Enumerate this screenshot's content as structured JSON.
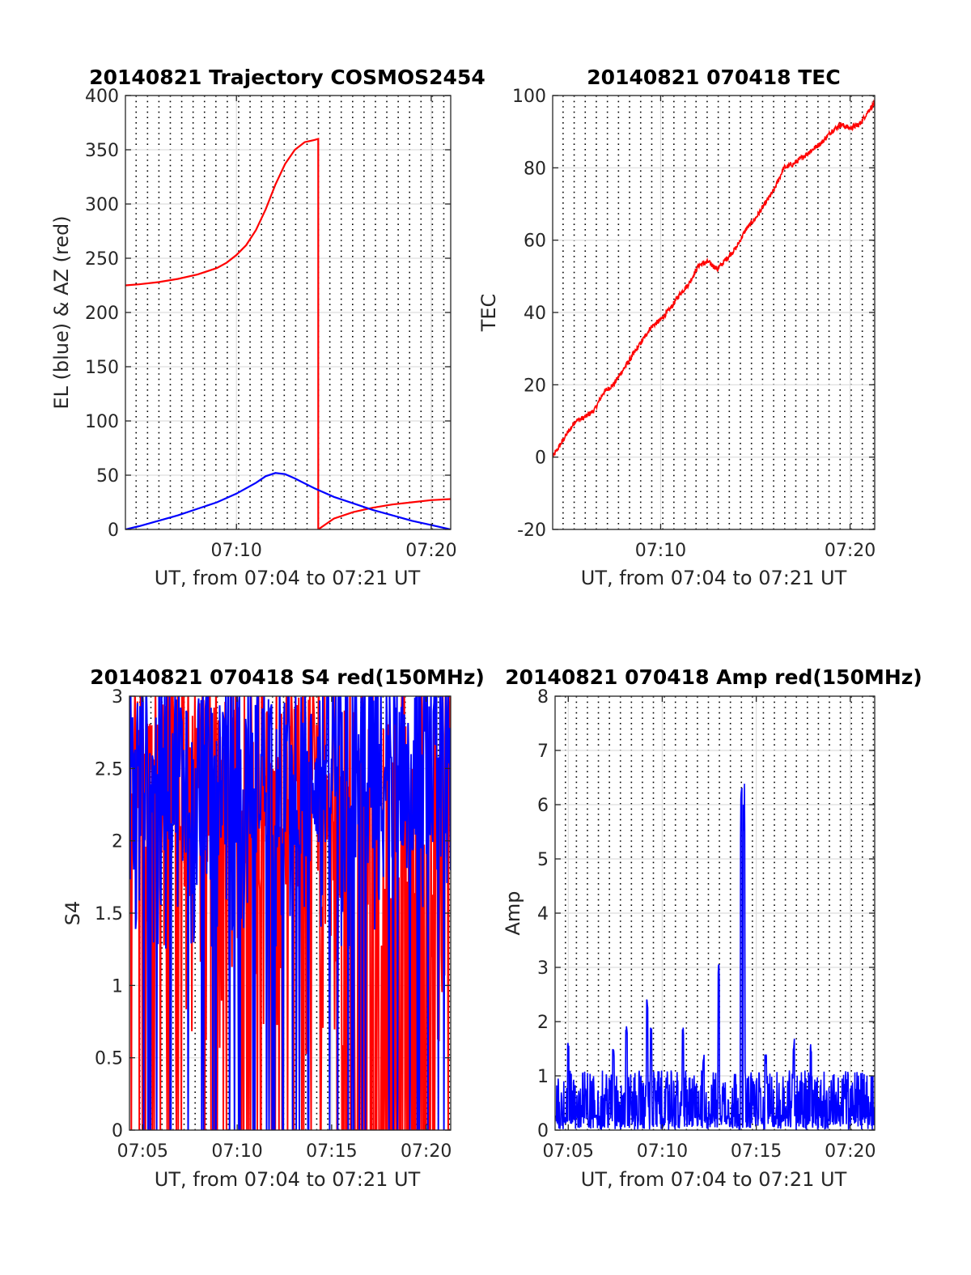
{
  "figure": {
    "background": "#ffffff"
  },
  "colors": {
    "red": "#ff0000",
    "blue": "#0000ff",
    "grid_major": "#dddddd",
    "grid_minor": "#000000",
    "axes": "#262626"
  },
  "chart_data": [
    {
      "id": "trajectory",
      "type": "line",
      "title": "20140821 Trajectory COSMOS2454",
      "xlabel": "UT, from 07:04 to 07:21 UT",
      "ylabel": "EL (blue) & AZ (red)",
      "xlim_minutes": [
        4.3,
        21.0
      ],
      "ylim": [
        0,
        400
      ],
      "yticks": [
        0,
        50,
        100,
        150,
        200,
        250,
        300,
        350,
        400
      ],
      "xticks": [
        {
          "value": 10,
          "label": "07:10"
        },
        {
          "value": 20,
          "label": "07:20"
        }
      ],
      "minor_grid": "dotted vertical every ~0.6 min",
      "series": [
        {
          "color": "red",
          "x": [
            4.3,
            5,
            6,
            7,
            8,
            9,
            9.5,
            10,
            10.5,
            11,
            11.5,
            12,
            12.5,
            13,
            13.5,
            14,
            14.2,
            14.2,
            15,
            16,
            17,
            18,
            19,
            20,
            21
          ],
          "y": [
            225,
            226,
            228,
            231,
            235,
            241,
            246,
            253,
            262,
            276,
            295,
            318,
            337,
            350,
            357,
            359,
            360,
            0,
            10,
            16,
            20,
            23,
            25,
            27,
            28
          ]
        },
        {
          "color": "blue",
          "x": [
            4.3,
            5,
            6,
            7,
            8,
            9,
            10,
            11,
            11.5,
            12,
            12.5,
            13,
            14,
            15,
            16,
            17,
            18,
            19,
            20,
            21
          ],
          "y": [
            0,
            3,
            8,
            13,
            19,
            25,
            33,
            43,
            49,
            52,
            51,
            47,
            38,
            30,
            24,
            18,
            13,
            8,
            4,
            0
          ]
        }
      ]
    },
    {
      "id": "tec",
      "type": "line",
      "title": "20140821 070418 TEC",
      "xlabel": "UT, from 07:04 to 07:21 UT",
      "ylabel": "TEC",
      "xlim_minutes": [
        4.3,
        21.3
      ],
      "ylim": [
        -20,
        100
      ],
      "yticks": [
        -20,
        0,
        20,
        40,
        60,
        80,
        100
      ],
      "xticks": [
        {
          "value": 10,
          "label": "07:10"
        },
        {
          "value": 20,
          "label": "07:20"
        }
      ],
      "series": [
        {
          "color": "red",
          "x": [
            4.3,
            5,
            5.5,
            6,
            6.5,
            7,
            7.5,
            8,
            8.5,
            9,
            9.5,
            10,
            10.5,
            11,
            11.5,
            12,
            12.5,
            13,
            13.5,
            14,
            14.5,
            15,
            15.5,
            16,
            16.5,
            17,
            17.5,
            18,
            18.5,
            19,
            19.5,
            20,
            20.5,
            21,
            21.3
          ],
          "y": [
            0,
            6,
            10,
            11,
            13,
            18,
            20,
            24,
            28,
            32,
            36,
            38,
            41,
            45,
            48,
            53,
            54,
            52,
            55,
            58,
            63,
            66,
            70,
            74,
            80,
            81,
            83,
            85,
            87,
            90,
            92,
            91,
            92,
            96,
            98
          ]
        }
      ]
    },
    {
      "id": "s4",
      "type": "line",
      "title": "20140821 070418 S4 red(150MHz)",
      "xlabel": "UT, from 07:04 to 07:21 UT",
      "ylabel": "S4",
      "xlim_minutes": [
        4.3,
        21.3
      ],
      "ylim": [
        0,
        3
      ],
      "yticks": [
        0,
        0.5,
        1,
        1.5,
        2,
        2.5,
        3
      ],
      "ytick_labels": [
        "0",
        "0.5",
        "1",
        "1.5",
        "2",
        "2.5",
        "3"
      ],
      "xticks": [
        {
          "value": 5,
          "label": "07:05"
        },
        {
          "value": 10,
          "label": "07:10"
        },
        {
          "value": 15,
          "label": "07:15"
        },
        {
          "value": 20,
          "label": "07:20"
        }
      ],
      "series": [
        {
          "color": "red",
          "description_values": "noisy, 0 to 3 (clipped)"
        },
        {
          "color": "blue",
          "description_values": "noisy, mostly 1.5 to 3 with drops to 0"
        }
      ]
    },
    {
      "id": "amp",
      "type": "line",
      "title": "20140821 070418 Amp red(150MHz)",
      "xlabel": "UT, from 07:04 to 07:21 UT",
      "ylabel": "Amp",
      "xlim_minutes": [
        4.3,
        21.3
      ],
      "ylim": [
        0,
        8
      ],
      "yticks": [
        0,
        1,
        2,
        3,
        4,
        5,
        6,
        7,
        8
      ],
      "xticks": [
        {
          "value": 5,
          "label": "07:05"
        },
        {
          "value": 10,
          "label": "07:10"
        },
        {
          "value": 15,
          "label": "07:15"
        },
        {
          "value": 20,
          "label": "07:20"
        }
      ],
      "series": [
        {
          "color": "blue",
          "peaks": [
            {
              "x": 5.0,
              "y": 1.6
            },
            {
              "x": 7.4,
              "y": 1.5
            },
            {
              "x": 8.1,
              "y": 1.95
            },
            {
              "x": 9.2,
              "y": 2.5
            },
            {
              "x": 9.4,
              "y": 2.0
            },
            {
              "x": 11.1,
              "y": 1.95
            },
            {
              "x": 12.2,
              "y": 1.4
            },
            {
              "x": 13.0,
              "y": 3.2
            },
            {
              "x": 14.2,
              "y": 6.3
            },
            {
              "x": 14.35,
              "y": 6.45
            },
            {
              "x": 15.5,
              "y": 1.4
            },
            {
              "x": 17.0,
              "y": 1.7
            },
            {
              "x": 17.9,
              "y": 1.7
            }
          ],
          "baseline": [
            0.4,
            1.1
          ]
        }
      ]
    }
  ]
}
